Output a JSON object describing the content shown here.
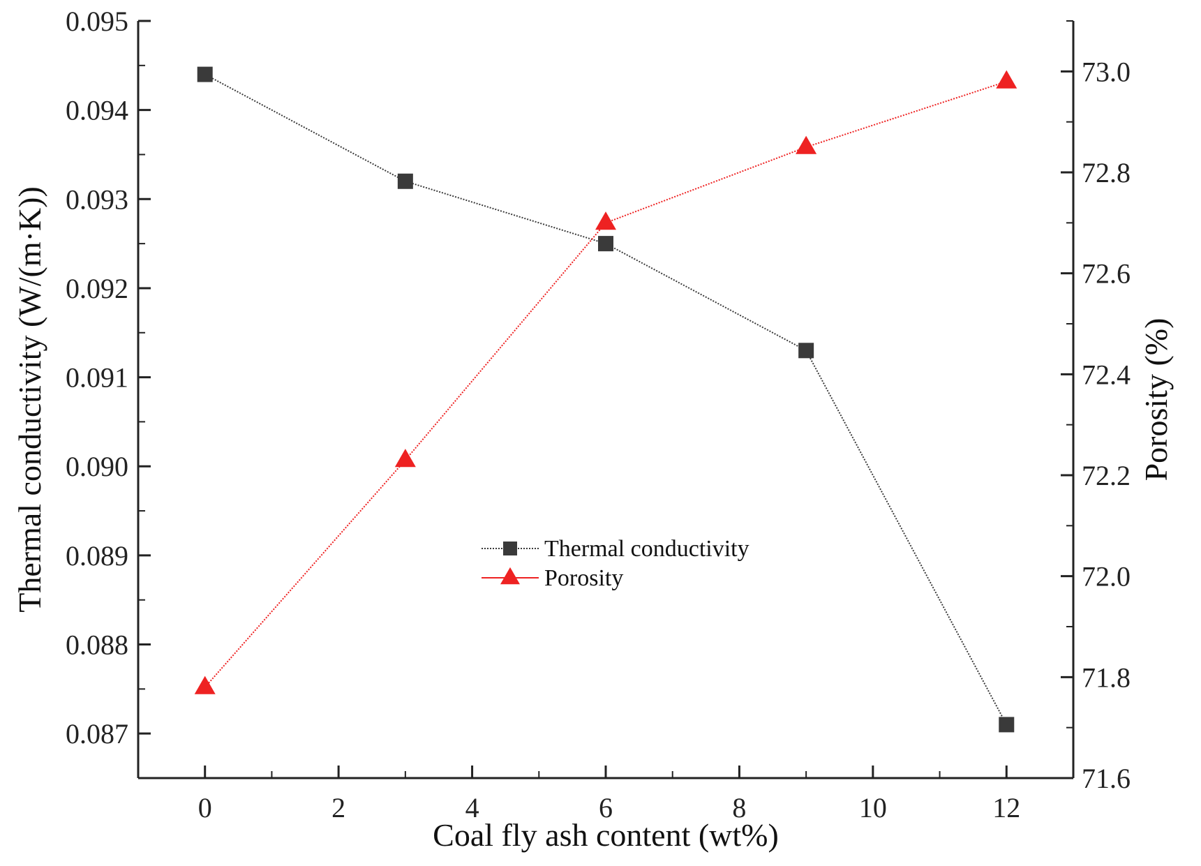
{
  "chart_data": {
    "type": "line",
    "title": "",
    "xlabel": "Coal fly ash content (wt%)",
    "ylabel_left": "Thermal conductivity (W/(m·K))",
    "ylabel_right": "Porosity (%)",
    "x": [
      0,
      3,
      6,
      9,
      12
    ],
    "xlim": [
      -1,
      13
    ],
    "x_ticks": [
      0,
      2,
      4,
      6,
      8,
      10,
      12
    ],
    "x_tick_labels": [
      "0",
      "2",
      "4",
      "6",
      "8",
      "10",
      "12"
    ],
    "ylim_left": [
      0.0865,
      0.095
    ],
    "y_ticks_left": [
      0.087,
      0.088,
      0.089,
      0.09,
      0.091,
      0.092,
      0.093,
      0.094,
      0.095
    ],
    "y_tick_labels_left": [
      "0.087",
      "0.088",
      "0.089",
      "0.090",
      "0.091",
      "0.092",
      "0.093",
      "0.094",
      "0.095"
    ],
    "ylim_right": [
      71.6,
      73.1
    ],
    "y_ticks_right": [
      71.6,
      71.8,
      72.0,
      72.2,
      72.4,
      72.6,
      72.8,
      73.0
    ],
    "y_tick_labels_right": [
      "71.6",
      "71.8",
      "72.0",
      "72.2",
      "72.4",
      "72.6",
      "72.8",
      "73.0"
    ],
    "grid": false,
    "legend_position": "center",
    "series": [
      {
        "name": "Thermal conductivity",
        "axis": "left",
        "marker": "square",
        "color": "#3a3a3a",
        "line_style": "dotted",
        "values": [
          0.0944,
          0.0932,
          0.0925,
          0.0913,
          0.0871
        ]
      },
      {
        "name": "Porosity",
        "axis": "right",
        "marker": "triangle",
        "color": "#ee2222",
        "line_style": "dotted",
        "values": [
          71.78,
          72.23,
          72.7,
          72.85,
          72.98
        ]
      }
    ]
  }
}
